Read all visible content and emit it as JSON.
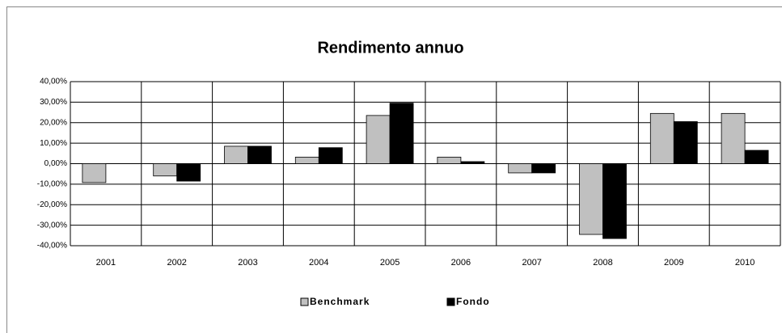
{
  "chart_data": {
    "type": "bar",
    "title": "Rendimento annuo",
    "categories": [
      "2001",
      "2002",
      "2003",
      "2004",
      "2005",
      "2006",
      "2007",
      "2008",
      "2009",
      "2010"
    ],
    "series": [
      {
        "name": "Benchmark",
        "color": "#c0c0c0",
        "values": [
          -9.2,
          -6,
          8.5,
          3.2,
          23.5,
          3.2,
          -4.5,
          -34.5,
          24.5,
          24.5
        ]
      },
      {
        "name": "Fondo",
        "color": "#000000",
        "values": [
          null,
          -8.5,
          8.5,
          7.8,
          29.5,
          1,
          -4.5,
          -36.5,
          20.5,
          6.5
        ]
      }
    ],
    "ylim": [
      -40,
      40
    ],
    "yticks": [
      {
        "value": -40,
        "label": "-40,00%"
      },
      {
        "value": -30,
        "label": "-30,00%"
      },
      {
        "value": -20,
        "label": "-20,00%"
      },
      {
        "value": -10,
        "label": "-10,00%"
      },
      {
        "value": 0,
        "label": "0,00%"
      },
      {
        "value": 10,
        "label": "10,00%"
      },
      {
        "value": 20,
        "label": "20,00%"
      },
      {
        "value": 30,
        "label": "30,00%"
      },
      {
        "value": 40,
        "label": "40,00%"
      }
    ],
    "grid": true,
    "legend": "bottom"
  }
}
